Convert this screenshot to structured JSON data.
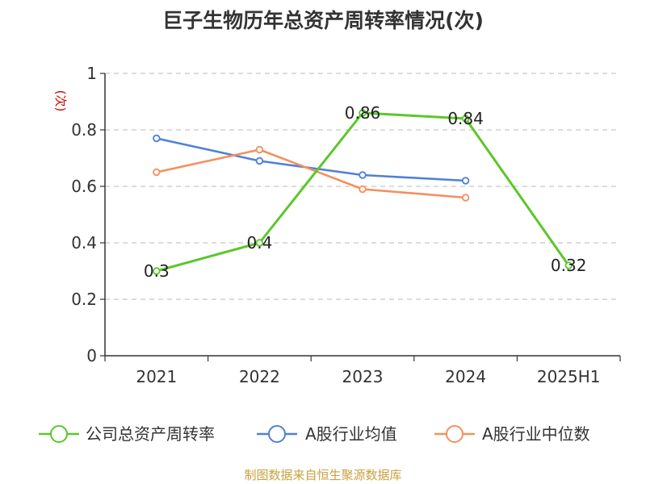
{
  "chart_data": {
    "type": "line",
    "title": "巨子生物历年总资产周转率情况(次)",
    "ylabel": "(次)",
    "categories": [
      "2021",
      "2022",
      "2023",
      "2024",
      "2025H1"
    ],
    "ylim": [
      0,
      1
    ],
    "yticks": [
      "0",
      "0.2",
      "0.4",
      "0.6",
      "0.8",
      "1"
    ],
    "grid": true,
    "legend_position": "bottom",
    "series": [
      {
        "name": "公司总资产周转率",
        "color": "#5cc72a",
        "values": [
          0.3,
          0.4,
          0.86,
          0.84,
          0.32
        ],
        "labels": [
          "0.3",
          "0.4",
          "0.86",
          "0.84",
          "0.32"
        ]
      },
      {
        "name": "A股行业均值",
        "color": "#4f81d8",
        "values": [
          0.77,
          0.69,
          0.64,
          0.62,
          null
        ]
      },
      {
        "name": "A股行业中位数",
        "color": "#f58f5e",
        "values": [
          0.65,
          0.73,
          0.59,
          0.56,
          null
        ]
      }
    ],
    "source": "制图数据来自恒生聚源数据库"
  }
}
